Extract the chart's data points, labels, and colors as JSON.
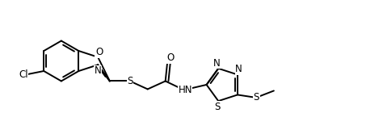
{
  "background_color": "#ffffff",
  "line_color": "#000000",
  "line_width": 1.4,
  "figsize": [
    4.74,
    1.66
  ],
  "dpi": 100,
  "xlim": [
    0,
    9.5
  ],
  "ylim": [
    0,
    3.3
  ]
}
